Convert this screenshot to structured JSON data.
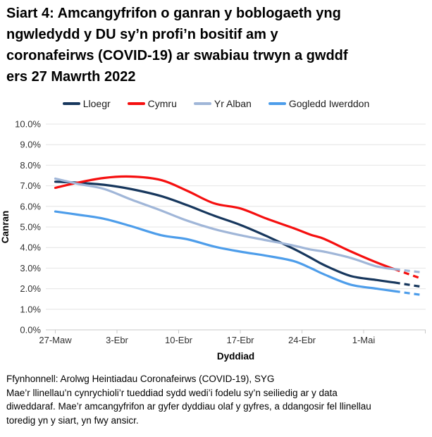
{
  "title_lines": [
    "Siart 4: Amcangyfrifon o ganran y boblogaeth yng",
    "ngwledydd y DU sy’n profi’n bositif am y",
    "coronafeirws (COVID-19) ar swabiau trwyn a gwddf",
    "ers 27 Mawrth 2022"
  ],
  "footer": {
    "source": "Ffynhonnell: Arolwg Heintiadau Coronafeirws (COVID-19), SYG",
    "note_lines": [
      "Mae’r llinellau’n cynrychioli’r tueddiad sydd wedi’i fodelu sy’n seiliedig ar y data",
      "diweddaraf. Mae’r amcangyfrifon ar gyfer dyddiau olaf y gyfres, a ddangosir fel llinellau",
      "toredig yn y siart, yn fwy ansicr."
    ]
  },
  "chart_data": {
    "type": "line",
    "title": "Siart 4: Amcangyfrifon o ganran y boblogaeth yng ngwledydd y DU sy’n profi’n bositif am y coronafeirws (COVID-19) ar swabiau trwyn a gwddf ers 27 Mawrth 2022",
    "xlabel": "Dyddiad",
    "ylabel": "Canran",
    "ylim": [
      0,
      10
    ],
    "grid": "horizontal",
    "legend_position": "top",
    "y_tick_labels": [
      "0.0%",
      "1.0%",
      "2.0%",
      "3.0%",
      "4.0%",
      "5.0%",
      "6.0%",
      "7.0%",
      "8.0%",
      "9.0%",
      "10.0%"
    ],
    "xticks": [
      {
        "day": 0,
        "label": "27-Maw"
      },
      {
        "day": 7,
        "label": "3-Ebr"
      },
      {
        "day": 14,
        "label": "10-Ebr"
      },
      {
        "day": 21,
        "label": "17-Ebr"
      },
      {
        "day": 28,
        "label": "24-Ebr"
      },
      {
        "day": 35,
        "label": "1-Mai"
      },
      {
        "day": 42,
        "label": ""
      }
    ],
    "x_days": [
      0,
      2.5,
      5.5,
      8.5,
      12,
      15,
      18,
      21,
      24,
      27,
      29,
      30.5,
      33.5,
      36.5,
      38.5,
      41.5
    ],
    "dashed_from_day": 38.5,
    "dashed_meaning": "llinellau toredig = amcangyfrifon mwy ansicr ar gyfer dyddiau olaf y gyfres",
    "series": [
      {
        "name": "Lloegr",
        "color": "#17375D",
        "values": [
          7.2,
          7.15,
          7.05,
          6.85,
          6.5,
          6.05,
          5.55,
          5.1,
          4.55,
          3.95,
          3.5,
          3.15,
          2.62,
          2.42,
          2.3,
          2.1
        ]
      },
      {
        "name": "Cymru",
        "color": "#F50F0F",
        "values": [
          6.9,
          7.15,
          7.38,
          7.45,
          7.28,
          6.75,
          6.15,
          5.9,
          5.4,
          4.95,
          4.62,
          4.42,
          3.82,
          3.27,
          2.95,
          2.5
        ]
      },
      {
        "name": "Yr Alban",
        "color": "#A0B6D8",
        "values": [
          7.35,
          7.1,
          6.85,
          6.35,
          5.8,
          5.3,
          4.9,
          4.6,
          4.35,
          4.1,
          3.9,
          3.8,
          3.5,
          3.08,
          2.95,
          2.8
        ]
      },
      {
        "name": "Gogledd Iwerddon",
        "color": "#4D9DEA",
        "values": [
          5.75,
          5.6,
          5.4,
          5.05,
          4.6,
          4.4,
          4.05,
          3.8,
          3.6,
          3.35,
          3.0,
          2.7,
          2.2,
          2.0,
          1.88,
          1.7
        ]
      }
    ]
  }
}
